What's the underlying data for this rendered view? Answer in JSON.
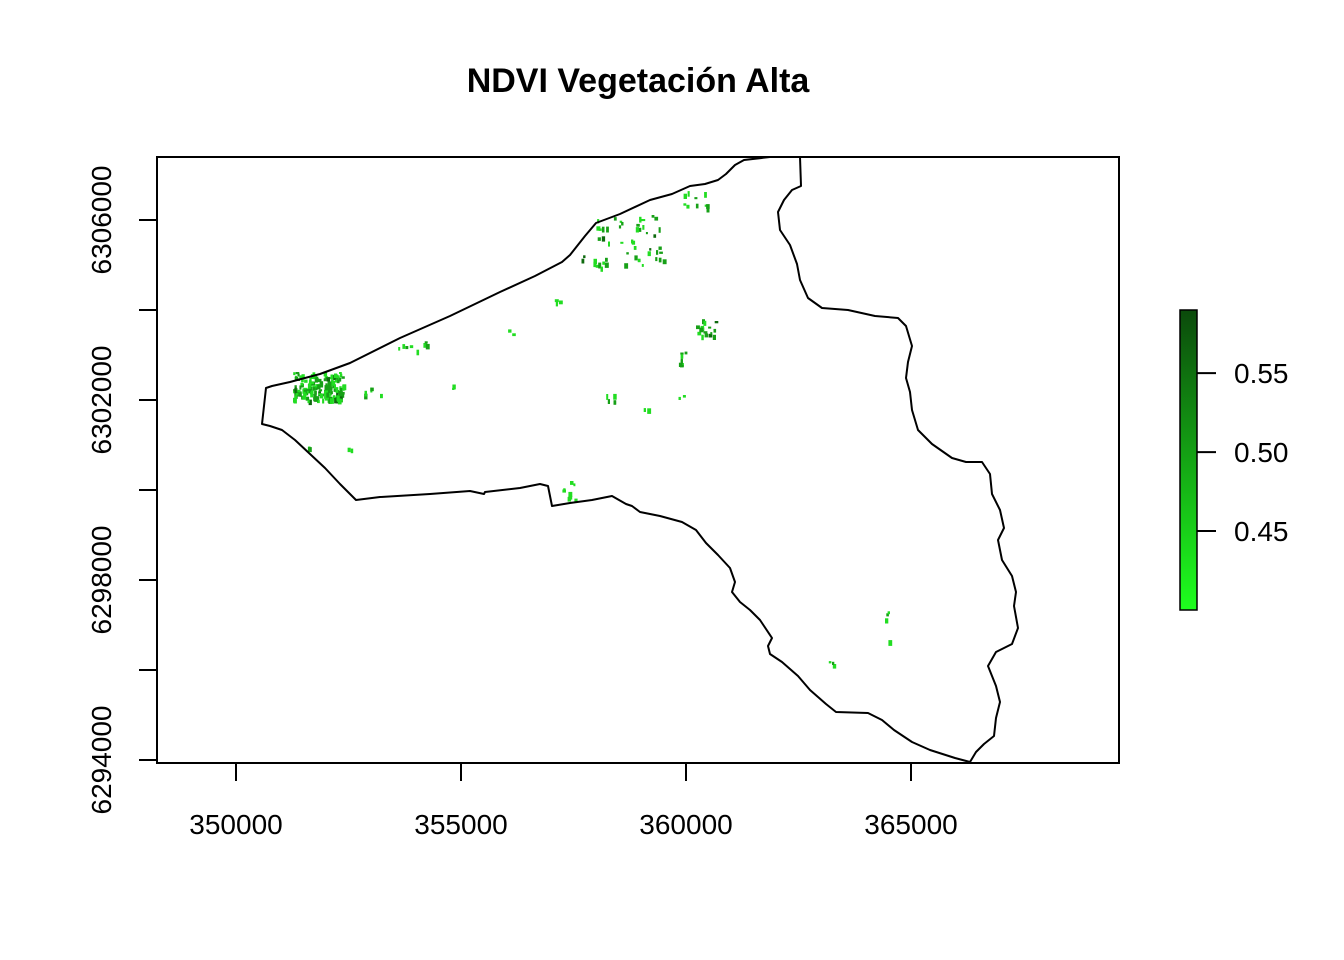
{
  "title": "NDVI Vegetación Alta",
  "x_axis": {
    "ticks": [
      350000,
      355000,
      360000,
      365000
    ],
    "labels": [
      "350000",
      "355000",
      "360000",
      "365000"
    ]
  },
  "y_axis": {
    "ticks": [
      6294000,
      6296000,
      6298000,
      6300000,
      6302000,
      6304000,
      6306000
    ],
    "labels": [
      "6294000",
      "",
      "6298000",
      "",
      "6302000",
      "",
      "6306000"
    ]
  },
  "legend": {
    "placement": "right",
    "range": [
      0.4,
      0.59
    ],
    "ticks": [
      0.45,
      0.5,
      0.55
    ],
    "labels": [
      "0.45",
      "0.50",
      "0.55"
    ],
    "color_low": "#1EFF1E",
    "color_high": "#0B4A0B"
  },
  "colors": {
    "boundary": "#000000",
    "vegetation_light": "#22DD22",
    "vegetation_mid": "#17A017",
    "vegetation_dark": "#0E6A0E"
  }
}
